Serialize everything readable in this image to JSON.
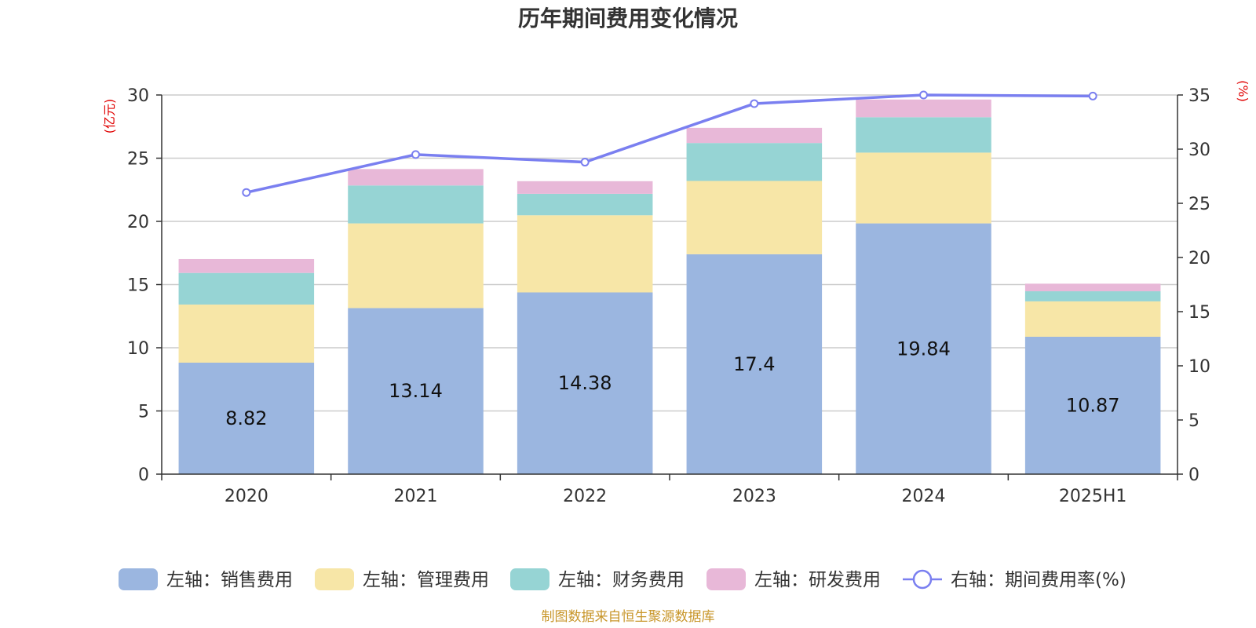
{
  "chart_data": {
    "type": "bar",
    "title": "历年期间费用变化情况",
    "left_unit": "(亿元)",
    "right_unit": "(%)",
    "categories": [
      "2020",
      "2021",
      "2022",
      "2023",
      "2024",
      "2025H1"
    ],
    "left_axis": {
      "min": 0,
      "max": 30,
      "ticks": [
        0,
        5,
        10,
        15,
        20,
        25,
        30
      ]
    },
    "right_axis": {
      "min": 0,
      "max": 35,
      "ticks": [
        0,
        5,
        10,
        15,
        20,
        25,
        30,
        35
      ]
    },
    "grid": true,
    "legend_position": "bottom",
    "stacked_series": [
      {
        "name": "左轴：销售费用",
        "color": "#9bb6e0",
        "values": [
          8.82,
          13.14,
          14.38,
          17.4,
          19.84,
          10.87
        ],
        "show_labels": true
      },
      {
        "name": "左轴：管理费用",
        "color": "#f7e6a7",
        "values": [
          4.6,
          6.7,
          6.1,
          5.8,
          5.6,
          2.8
        ]
      },
      {
        "name": "左轴：财务费用",
        "color": "#96d4d4",
        "values": [
          2.5,
          3.0,
          1.7,
          3.0,
          2.8,
          0.8
        ]
      },
      {
        "name": "左轴：研发费用",
        "color": "#e8b8d8",
        "values": [
          1.1,
          1.3,
          1.0,
          1.2,
          1.4,
          0.6
        ]
      }
    ],
    "line_series": {
      "name": "右轴：期间费用率(%)",
      "color": "#7a7ff0",
      "values": [
        26.0,
        29.5,
        28.8,
        34.2,
        35.0,
        34.9
      ]
    }
  },
  "source": "制图数据来自恒生聚源数据库"
}
